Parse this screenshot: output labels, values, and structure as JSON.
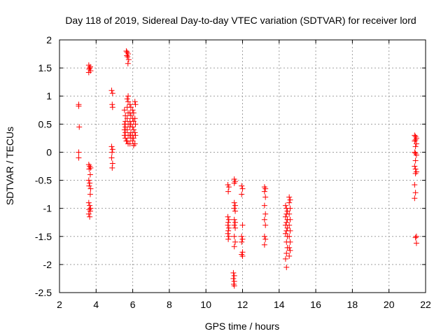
{
  "chart_data": {
    "type": "scatter",
    "title": "Day 118 of 2019, Sidereal Day-to-day VTEC variation (SDTVAR) for receiver lord",
    "xlabel": "GPS time / hours",
    "ylabel": "SDTVAR / TECUs",
    "xlim": [
      2,
      22
    ],
    "ylim": [
      -2.5,
      2
    ],
    "xticks": [
      "2",
      "4",
      "6",
      "8",
      "10",
      "12",
      "14",
      "16",
      "18",
      "20",
      "22"
    ],
    "yticks": [
      "2",
      "1.5",
      "1",
      "0.5",
      "0",
      "-0.5",
      "-1",
      "-1.5",
      "-2",
      "-2.5"
    ],
    "grid": true,
    "marker": "+",
    "color": "#ff0000",
    "series": [
      {
        "name": "SDTVAR",
        "points": [
          [
            3.05,
            0.85
          ],
          [
            3.05,
            0.82
          ],
          [
            3.08,
            0.45
          ],
          [
            3.05,
            0.0
          ],
          [
            3.05,
            -0.1
          ],
          [
            3.6,
            1.55
          ],
          [
            3.65,
            1.5
          ],
          [
            3.7,
            1.45
          ],
          [
            3.62,
            1.48
          ],
          [
            3.68,
            1.52
          ],
          [
            3.6,
            1.42
          ],
          [
            3.6,
            -0.22
          ],
          [
            3.65,
            -0.25
          ],
          [
            3.7,
            -0.28
          ],
          [
            3.62,
            -0.3
          ],
          [
            3.68,
            -0.4
          ],
          [
            3.6,
            -0.5
          ],
          [
            3.65,
            -0.55
          ],
          [
            3.62,
            -0.6
          ],
          [
            3.7,
            -0.65
          ],
          [
            3.68,
            -0.75
          ],
          [
            3.6,
            -0.9
          ],
          [
            3.65,
            -0.95
          ],
          [
            3.7,
            -1.0
          ],
          [
            3.62,
            -1.02
          ],
          [
            3.68,
            -1.05
          ],
          [
            3.6,
            -1.1
          ],
          [
            3.65,
            -1.15
          ],
          [
            4.85,
            1.1
          ],
          [
            4.9,
            1.05
          ],
          [
            4.88,
            0.85
          ],
          [
            4.9,
            0.8
          ],
          [
            4.85,
            0.1
          ],
          [
            4.9,
            0.05
          ],
          [
            4.87,
            0.0
          ],
          [
            4.85,
            -0.1
          ],
          [
            4.9,
            -0.2
          ],
          [
            4.88,
            -0.28
          ],
          [
            5.65,
            1.8
          ],
          [
            5.7,
            1.78
          ],
          [
            5.75,
            1.75
          ],
          [
            5.68,
            1.72
          ],
          [
            5.72,
            1.7
          ],
          [
            5.78,
            1.65
          ],
          [
            5.74,
            1.58
          ],
          [
            5.55,
            0.75
          ],
          [
            5.6,
            0.65
          ],
          [
            5.6,
            0.55
          ],
          [
            5.55,
            0.5
          ],
          [
            5.6,
            0.45
          ],
          [
            5.55,
            0.4
          ],
          [
            5.6,
            0.35
          ],
          [
            5.55,
            0.3
          ],
          [
            5.6,
            0.25
          ],
          [
            5.65,
            0.2
          ],
          [
            5.7,
            0.95
          ],
          [
            5.75,
            1.0
          ],
          [
            5.75,
            0.9
          ],
          [
            5.7,
            0.8
          ],
          [
            5.75,
            0.7
          ],
          [
            5.7,
            0.6
          ],
          [
            5.75,
            0.5
          ],
          [
            5.7,
            0.4
          ],
          [
            5.75,
            0.3
          ],
          [
            5.7,
            0.2
          ],
          [
            5.75,
            0.15
          ],
          [
            5.85,
            0.85
          ],
          [
            5.9,
            0.8
          ],
          [
            5.85,
            0.7
          ],
          [
            5.9,
            0.65
          ],
          [
            5.85,
            0.55
          ],
          [
            5.9,
            0.5
          ],
          [
            5.85,
            0.45
          ],
          [
            5.9,
            0.35
          ],
          [
            5.85,
            0.3
          ],
          [
            5.9,
            0.25
          ],
          [
            5.85,
            0.15
          ],
          [
            6.0,
            0.75
          ],
          [
            6.05,
            0.7
          ],
          [
            6.0,
            0.6
          ],
          [
            6.05,
            0.55
          ],
          [
            6.0,
            0.45
          ],
          [
            6.05,
            0.4
          ],
          [
            6.0,
            0.3
          ],
          [
            6.05,
            0.25
          ],
          [
            6.0,
            0.2
          ],
          [
            6.05,
            0.12
          ],
          [
            6.12,
            0.9
          ],
          [
            6.15,
            0.85
          ],
          [
            6.12,
            0.6
          ],
          [
            6.15,
            0.5
          ],
          [
            6.12,
            0.35
          ],
          [
            6.15,
            0.3
          ],
          [
            6.12,
            0.15
          ],
          [
            11.2,
            -0.58
          ],
          [
            11.25,
            -0.62
          ],
          [
            11.22,
            -0.7
          ],
          [
            11.2,
            -1.15
          ],
          [
            11.25,
            -1.2
          ],
          [
            11.22,
            -1.25
          ],
          [
            11.2,
            -1.3
          ],
          [
            11.25,
            -1.35
          ],
          [
            11.22,
            -1.4
          ],
          [
            11.2,
            -1.45
          ],
          [
            11.25,
            -1.5
          ],
          [
            11.22,
            -1.55
          ],
          [
            11.55,
            -0.48
          ],
          [
            11.6,
            -0.52
          ],
          [
            11.55,
            -0.55
          ],
          [
            11.55,
            -0.9
          ],
          [
            11.6,
            -0.95
          ],
          [
            11.55,
            -1.0
          ],
          [
            11.6,
            -1.05
          ],
          [
            11.55,
            -1.2
          ],
          [
            11.6,
            -1.25
          ],
          [
            11.55,
            -1.3
          ],
          [
            11.6,
            -1.35
          ],
          [
            11.55,
            -1.5
          ],
          [
            11.6,
            -1.6
          ],
          [
            11.55,
            -1.68
          ],
          [
            11.5,
            -2.15
          ],
          [
            11.55,
            -2.2
          ],
          [
            11.5,
            -2.25
          ],
          [
            11.55,
            -2.3
          ],
          [
            11.52,
            -2.35
          ],
          [
            11.55,
            -2.38
          ],
          [
            11.95,
            -0.6
          ],
          [
            12.0,
            -0.65
          ],
          [
            11.95,
            -0.75
          ],
          [
            12.0,
            -1.3
          ],
          [
            11.95,
            -1.5
          ],
          [
            12.0,
            -1.55
          ],
          [
            11.95,
            -1.6
          ],
          [
            12.0,
            -1.78
          ],
          [
            11.95,
            -1.82
          ],
          [
            12.0,
            -1.85
          ],
          [
            13.2,
            -0.62
          ],
          [
            13.25,
            -0.65
          ],
          [
            13.2,
            -0.7
          ],
          [
            13.25,
            -0.8
          ],
          [
            13.2,
            -0.95
          ],
          [
            13.25,
            -1.1
          ],
          [
            13.2,
            -1.2
          ],
          [
            13.25,
            -1.3
          ],
          [
            13.2,
            -1.5
          ],
          [
            13.25,
            -1.55
          ],
          [
            13.2,
            -1.65
          ],
          [
            14.35,
            -0.95
          ],
          [
            14.4,
            -1.0
          ],
          [
            14.45,
            -1.05
          ],
          [
            14.4,
            -1.1
          ],
          [
            14.35,
            -1.15
          ],
          [
            14.45,
            -1.2
          ],
          [
            14.4,
            -1.25
          ],
          [
            14.35,
            -1.3
          ],
          [
            14.45,
            -1.35
          ],
          [
            14.4,
            -1.4
          ],
          [
            14.35,
            -1.45
          ],
          [
            14.45,
            -1.5
          ],
          [
            14.4,
            -1.6
          ],
          [
            14.45,
            -1.7
          ],
          [
            14.4,
            -1.8
          ],
          [
            14.35,
            -1.9
          ],
          [
            14.4,
            -2.05
          ],
          [
            14.55,
            -0.8
          ],
          [
            14.6,
            -0.85
          ],
          [
            14.55,
            -0.9
          ],
          [
            14.6,
            -1.0
          ],
          [
            14.55,
            -1.1
          ],
          [
            14.6,
            -1.2
          ],
          [
            14.55,
            -1.3
          ],
          [
            14.6,
            -1.4
          ],
          [
            14.55,
            -1.5
          ],
          [
            14.6,
            -1.6
          ],
          [
            14.55,
            -1.7
          ],
          [
            14.6,
            -1.75
          ],
          [
            14.55,
            -1.85
          ],
          [
            21.4,
            0.3
          ],
          [
            21.45,
            0.28
          ],
          [
            21.5,
            0.25
          ],
          [
            21.45,
            0.22
          ],
          [
            21.4,
            0.2
          ],
          [
            21.5,
            0.15
          ],
          [
            21.45,
            0.1
          ],
          [
            21.4,
            0.0
          ],
          [
            21.45,
            -0.02
          ],
          [
            21.5,
            -0.05
          ],
          [
            21.45,
            -0.15
          ],
          [
            21.4,
            -0.25
          ],
          [
            21.45,
            -0.3
          ],
          [
            21.5,
            -0.35
          ],
          [
            21.45,
            -0.38
          ],
          [
            21.4,
            -0.58
          ],
          [
            21.45,
            -0.72
          ],
          [
            21.4,
            -0.82
          ],
          [
            21.5,
            -1.5
          ],
          [
            21.45,
            -1.52
          ],
          [
            21.5,
            -1.62
          ]
        ]
      }
    ]
  }
}
